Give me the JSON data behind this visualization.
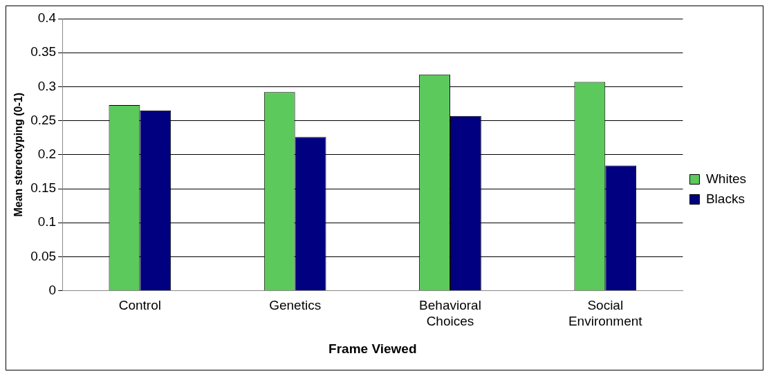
{
  "chart_data": {
    "type": "bar",
    "xlabel": "Frame Viewed",
    "ylabel": "Mean stereotyping (0-1)",
    "categories": [
      "Control",
      "Genetics",
      "Behavioral Choices",
      "Social Environment"
    ],
    "series": [
      {
        "name": "Whites",
        "color": "#5cc95c",
        "values": [
          0.273,
          0.292,
          0.318,
          0.307
        ]
      },
      {
        "name": "Blacks",
        "color": "#000080",
        "values": [
          0.265,
          0.226,
          0.257,
          0.184
        ]
      }
    ],
    "ylim": [
      0,
      0.4
    ],
    "yticks": [
      0,
      0.05,
      0.1,
      0.15,
      0.2,
      0.25,
      0.3,
      0.35,
      0.4
    ],
    "grid": "y",
    "legend": "right"
  }
}
